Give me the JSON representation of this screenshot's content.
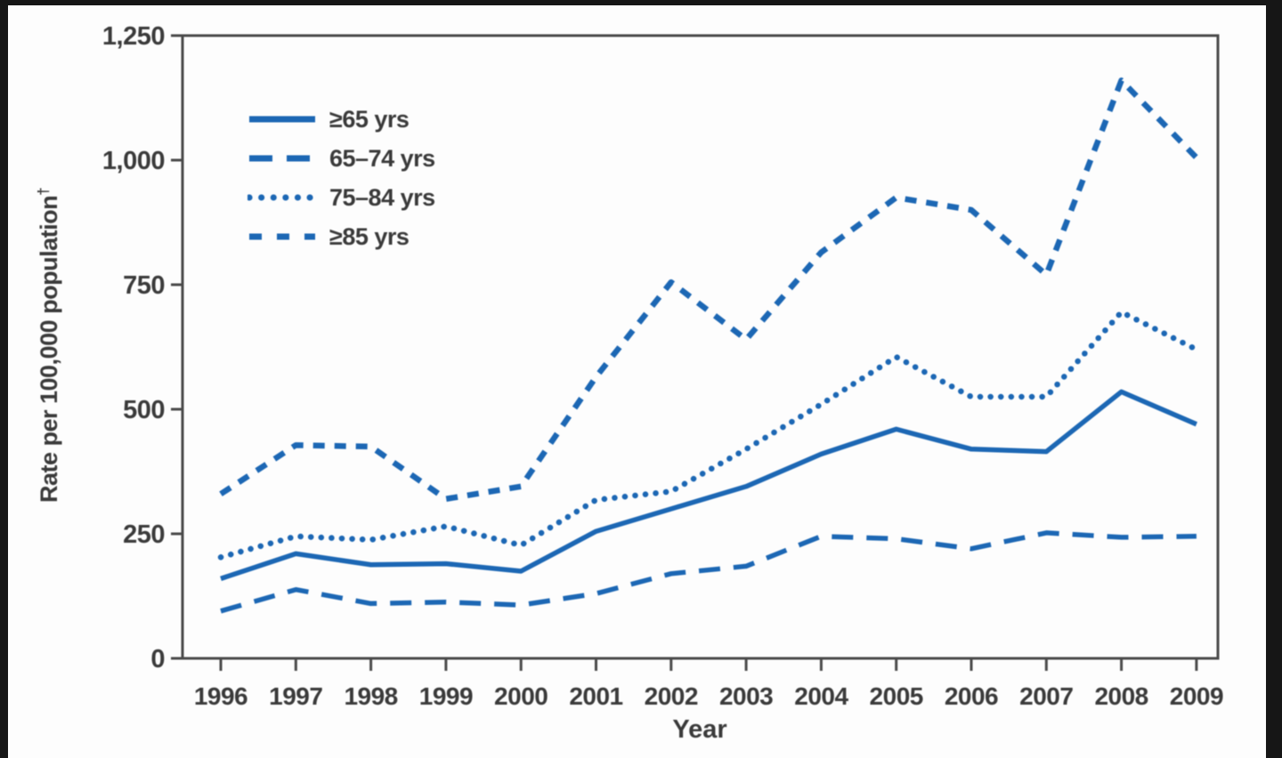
{
  "figure": {
    "background": "#fdfdfd",
    "frame_bar_color": "#161616"
  },
  "chart_data": {
    "type": "line",
    "title": "",
    "xlabel": "Year",
    "ylabel": "Rate per 100,000 population",
    "ylabel_superscript": "†",
    "x": [
      "1996",
      "1997",
      "1998",
      "1999",
      "2000",
      "2001",
      "2002",
      "2003",
      "2004",
      "2005",
      "2006",
      "2007",
      "2008",
      "2009"
    ],
    "ylim": [
      0,
      1250
    ],
    "yticks": [
      0,
      250,
      500,
      750,
      1000,
      1250
    ],
    "ytick_labels": [
      "0",
      "250",
      "500",
      "750",
      "1,000",
      "1,250"
    ],
    "grid": false,
    "legend_position": "top-left",
    "line_color": "#1c67b4",
    "axis_color": "#4a4a4a",
    "text_color": "#3a3a3a",
    "series": [
      {
        "name": "≥65 yrs",
        "style": "solid",
        "values": [
          160,
          210,
          188,
          190,
          175,
          255,
          300,
          345,
          410,
          460,
          420,
          415,
          535,
          470
        ]
      },
      {
        "name": "65–74 yrs",
        "style": "long-dash",
        "values": [
          95,
          138,
          110,
          113,
          107,
          130,
          170,
          185,
          245,
          240,
          220,
          252,
          243,
          245
        ]
      },
      {
        "name": "75–84 yrs",
        "style": "dotted",
        "values": [
          203,
          245,
          238,
          265,
          227,
          318,
          335,
          420,
          510,
          605,
          525,
          525,
          695,
          620
        ]
      },
      {
        "name": "≥85 yrs",
        "style": "short-dash",
        "values": [
          330,
          428,
          425,
          320,
          345,
          565,
          755,
          640,
          815,
          925,
          900,
          770,
          1160,
          1005
        ]
      }
    ]
  }
}
